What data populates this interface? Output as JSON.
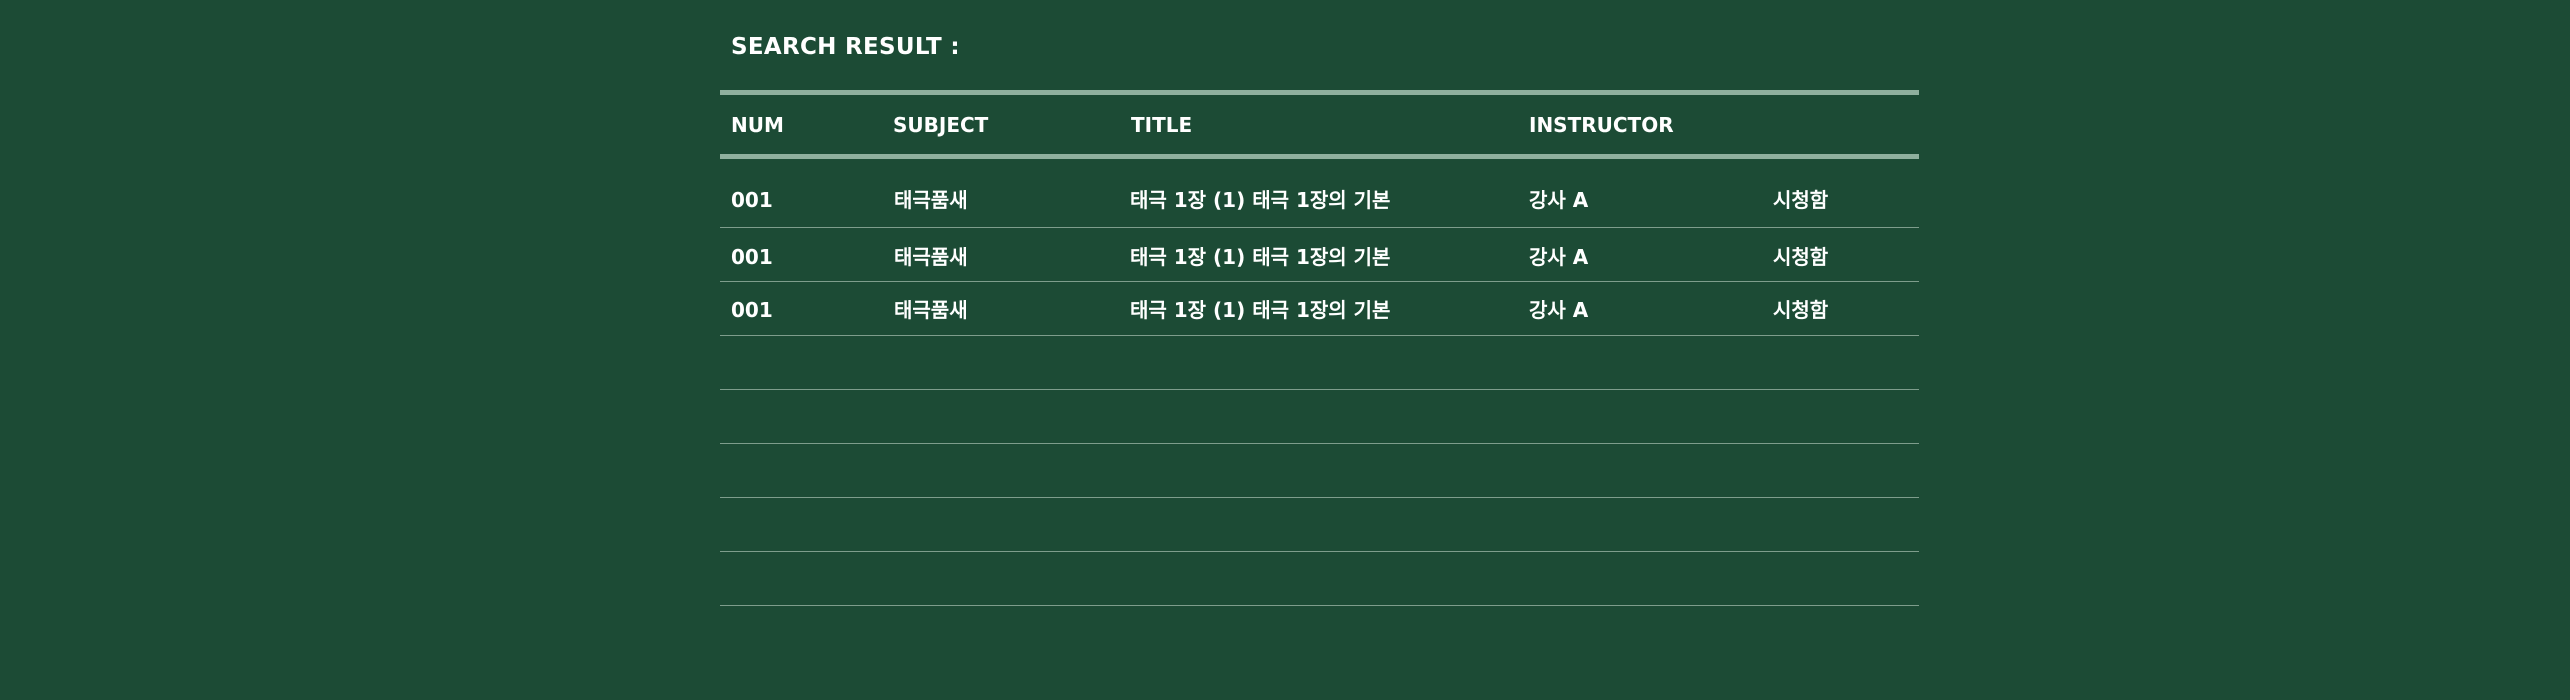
{
  "search": {
    "title": "SEARCH RESULT :"
  },
  "table": {
    "headers": {
      "num": "NUM",
      "subject": "SUBJECT",
      "title": "TITLE",
      "instructor": "INSTRUCTOR",
      "status": ""
    },
    "rows": [
      {
        "num": "001",
        "subject": "태극품새",
        "title": "태극 1장 (1) 태극 1장의 기본",
        "instructor": "강사 A",
        "status": "시청함"
      },
      {
        "num": "001",
        "subject": "태극품새",
        "title": "태극 1장 (1) 태극 1장의 기본",
        "instructor": "강사 A",
        "status": "시청함"
      },
      {
        "num": "001",
        "subject": "태극품새",
        "title": "태극 1장 (1) 태극 1장의 기본",
        "instructor": "강사 A",
        "status": "시청함"
      }
    ]
  },
  "colors": {
    "background": "#1c4b35",
    "text": "#ffffff",
    "rule_thick": "#8fb09e",
    "rule_thin": "#7e9d8c"
  }
}
